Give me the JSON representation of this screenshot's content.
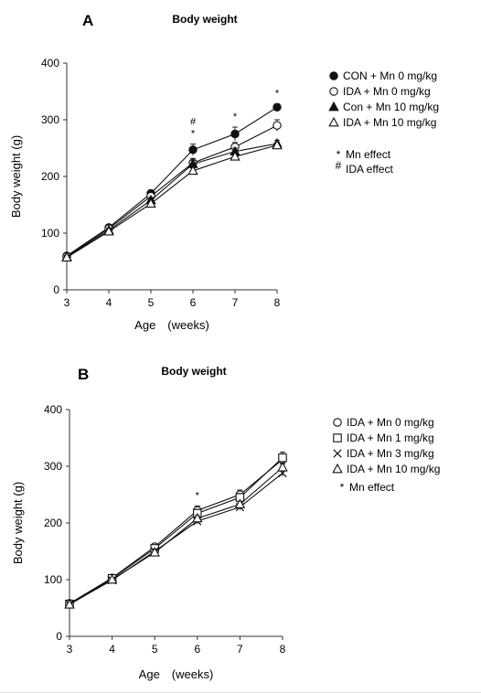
{
  "chart_data": [
    {
      "type": "line",
      "panel": "A",
      "title": "Body weight",
      "xlabel": "Age　(weeks)",
      "ylabel": "Body weight (g)",
      "x": [
        3,
        4,
        5,
        6,
        7,
        8
      ],
      "xticks": [
        "3",
        "4",
        "5",
        "6",
        "7",
        "8"
      ],
      "yticks": [
        "0",
        "100",
        "200",
        "300",
        "400"
      ],
      "ylim": [
        0,
        400
      ],
      "grid": false,
      "legend_position": "right",
      "series": [
        {
          "name": "CON + Mn 0 mg/kg",
          "marker": "filled-circle",
          "values": [
            60,
            110,
            170,
            247,
            275,
            322
          ],
          "errors": [
            3,
            4,
            6,
            10,
            12,
            6
          ]
        },
        {
          "name": "IDA + Mn 0 mg/kg",
          "marker": "open-circle",
          "values": [
            59,
            108,
            165,
            224,
            252,
            290
          ],
          "errors": [
            3,
            4,
            5,
            8,
            8,
            10
          ]
        },
        {
          "name": "Con + Mn 10 mg/kg",
          "marker": "filled-triangle",
          "values": [
            58,
            105,
            158,
            222,
            244,
            258
          ],
          "errors": [
            3,
            4,
            5,
            6,
            6,
            6
          ]
        },
        {
          "name": "IDA + Mn 10 mg/kg",
          "marker": "open-triangle",
          "values": [
            57,
            103,
            152,
            210,
            235,
            255
          ],
          "errors": [
            3,
            3,
            4,
            5,
            5,
            5
          ]
        }
      ],
      "significance": [
        {
          "x": 6,
          "marks": [
            "#",
            "*"
          ]
        },
        {
          "x": 7,
          "marks": [
            "*"
          ]
        },
        {
          "x": 8,
          "marks": [
            "*"
          ]
        }
      ],
      "notes": [
        {
          "symbol": "*",
          "text": "Mn effect"
        },
        {
          "symbol": "#",
          "text": "IDA effect"
        }
      ]
    },
    {
      "type": "line",
      "panel": "B",
      "title": "Body weight",
      "xlabel": "Age　(weeks)",
      "ylabel": "Body weight (g)",
      "x": [
        3,
        4,
        5,
        6,
        7,
        8
      ],
      "xticks": [
        "3",
        "4",
        "5",
        "6",
        "7",
        "8"
      ],
      "yticks": [
        "0",
        "100",
        "200",
        "300",
        "400"
      ],
      "ylim": [
        0,
        400
      ],
      "grid": false,
      "legend_position": "right",
      "series": [
        {
          "name": "IDA + Mn 0 mg/kg",
          "marker": "open-circle",
          "values": [
            58,
            103,
            158,
            222,
            250,
            312
          ],
          "errors": [
            3,
            4,
            5,
            8,
            8,
            10
          ]
        },
        {
          "name": "IDA + Mn 1 mg/kg",
          "marker": "open-square",
          "values": [
            57,
            102,
            155,
            217,
            245,
            315
          ],
          "errors": [
            3,
            4,
            5,
            7,
            7,
            10
          ]
        },
        {
          "name": "IDA + Mn 3 mg/kg",
          "marker": "cross",
          "values": [
            57,
            99,
            150,
            203,
            228,
            288
          ],
          "errors": [
            3,
            3,
            4,
            5,
            5,
            6
          ]
        },
        {
          "name": "IDA + Mn 10 mg/kg",
          "marker": "open-triangle",
          "values": [
            56,
            100,
            148,
            208,
            233,
            298
          ],
          "errors": [
            3,
            3,
            4,
            5,
            5,
            6
          ]
        }
      ],
      "significance": [
        {
          "x": 6,
          "marks": [
            "*"
          ]
        }
      ],
      "notes": [
        {
          "symbol": "*",
          "text": "Mn effect"
        }
      ]
    }
  ]
}
